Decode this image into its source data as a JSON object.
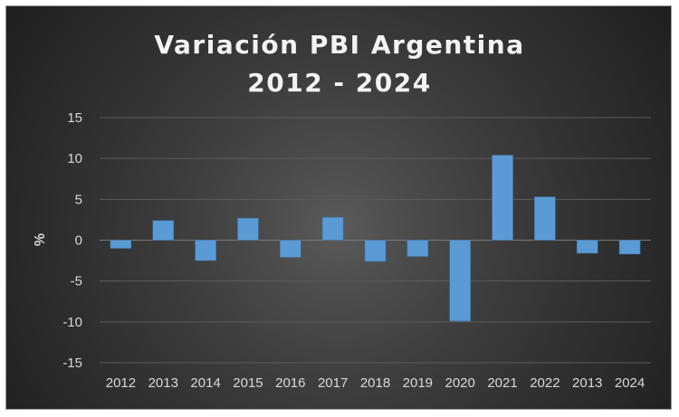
{
  "chart_data": {
    "type": "bar",
    "title_line1": "Variación PBI Argentina",
    "title_line2": "2012 - 2024",
    "ylabel": "%",
    "xlabel": "",
    "categories": [
      "2012",
      "2013",
      "2014",
      "2015",
      "2016",
      "2017",
      "2018",
      "2019",
      "2020",
      "2021",
      "2022",
      "2013",
      "2024"
    ],
    "values": [
      -1.0,
      2.4,
      -2.5,
      2.7,
      -2.1,
      2.8,
      -2.6,
      -2.0,
      -9.9,
      10.4,
      5.3,
      -1.6,
      -1.7
    ],
    "ylim": [
      -15,
      15
    ],
    "yticks": [
      15,
      10,
      5,
      0,
      -5,
      -10,
      -15
    ],
    "grid": true,
    "bar_color": "#5b9bd5",
    "background": "#2b2b2b",
    "text_color": "#d9d9d9"
  }
}
